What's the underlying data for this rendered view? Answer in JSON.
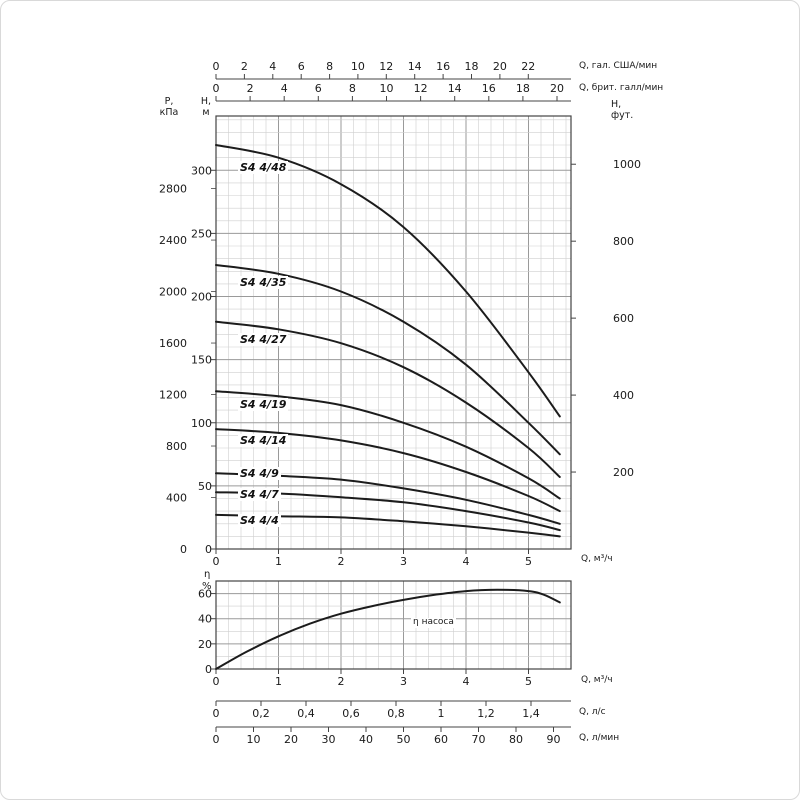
{
  "colors": {
    "curve": "#1c1c1c",
    "grid_minor": "#cfcfcf",
    "grid_major": "#9a9a9a",
    "frame": "#444444",
    "text": "#1a1a1a"
  },
  "labels": {
    "us_flow": "Q, гал. США/мин",
    "imp_flow": "Q, брит. галл/мин",
    "pressure_line1": "P,",
    "pressure_line2": "кПа",
    "head_m_line1": "H,",
    "head_m_line2": "м",
    "head_ft_line1": "H,",
    "head_ft_line2": "фут.",
    "q_m3h_main": "Q, м³/ч",
    "eta_line1": "η",
    "eta_line2": "%",
    "q_m3h_eff": "Q, м³/ч",
    "q_ls": "Q, л/с",
    "q_lmin": "Q, л/мин"
  },
  "chart_data": [
    {
      "type": "line",
      "xlabel": "Q, м³/ч",
      "ylabel": "H, м",
      "x_range": [
        0,
        5.68
      ],
      "y_range": [
        0,
        343
      ],
      "x_ticks": {
        "values": [
          0,
          1,
          2,
          3,
          4,
          5
        ],
        "labels": [
          "0",
          "1",
          "2",
          "3",
          "4",
          "5"
        ]
      },
      "y_ticks_head_m": {
        "values": [
          0,
          50,
          100,
          150,
          200,
          250,
          300
        ],
        "labels": [
          "0",
          "50",
          "100",
          "150",
          "200",
          "250",
          "300"
        ]
      },
      "y_ticks_kpa": {
        "values": [
          0,
          400,
          800,
          1200,
          1600,
          2000,
          2400,
          2800
        ],
        "labels": [
          "0",
          "400",
          "800",
          "1200",
          "1600",
          "2000",
          "2400",
          "2800"
        ],
        "kpa_per_m": 9.807
      },
      "y_ticks_ft": {
        "values": [
          200,
          400,
          600,
          800,
          1000
        ],
        "labels": [
          "200",
          "400",
          "600",
          "800",
          "1000"
        ],
        "m_per_ft": 0.3048
      },
      "top_axes": [
        {
          "name": "us_gpm",
          "values": [
            0,
            2,
            4,
            6,
            8,
            10,
            12,
            14,
            16,
            18,
            20,
            22
          ],
          "labels": [
            "0",
            "2",
            "4",
            "6",
            "8",
            "10",
            "12",
            "14",
            "16",
            "18",
            "20",
            "22"
          ],
          "m3h_per_unit": 0.2271
        },
        {
          "name": "imp_gpm",
          "values": [
            0,
            2,
            4,
            6,
            8,
            10,
            12,
            14,
            16,
            18,
            20
          ],
          "labels": [
            "0",
            "2",
            "4",
            "6",
            "8",
            "10",
            "12",
            "14",
            "16",
            "18",
            "20"
          ],
          "m3h_per_unit": 0.2728
        }
      ],
      "grid": {
        "x_minor": 0.2,
        "x_major": 1,
        "y_minor": 10,
        "y_major": 50
      },
      "x": [
        0,
        1,
        2,
        3,
        4,
        5,
        5.5
      ],
      "series": [
        {
          "name": "S4 4/48",
          "values": [
            320,
            310,
            289,
            255,
            204,
            140,
            105
          ],
          "label_h": 301
        },
        {
          "name": "S4 4/35",
          "values": [
            225,
            218,
            204,
            180,
            146,
            100,
            75
          ],
          "label_h": 210
        },
        {
          "name": "S4 4/27",
          "values": [
            180,
            174,
            163,
            144,
            116,
            80,
            57
          ],
          "label_h": 165
        },
        {
          "name": "S4 4/19",
          "values": [
            125,
            121,
            114,
            100,
            81,
            56,
            40
          ],
          "label_h": 113
        },
        {
          "name": "S4 4/14",
          "values": [
            95,
            92,
            86,
            76,
            61,
            42,
            30
          ],
          "label_h": 85
        },
        {
          "name": "S4 4/9",
          "values": [
            60,
            58,
            55,
            48,
            39,
            27,
            20
          ],
          "label_h": 59
        },
        {
          "name": "S4 4/7",
          "values": [
            45,
            44,
            41,
            37,
            30,
            21,
            15
          ],
          "label_h": 42
        },
        {
          "name": "S4 4/4",
          "values": [
            27,
            26,
            25,
            22,
            18,
            13,
            10
          ],
          "label_h": 21
        }
      ]
    },
    {
      "type": "line",
      "xlabel": "Q, м³/ч",
      "ylabel": "η %",
      "x_range": [
        0,
        5.68
      ],
      "y_range": [
        0,
        70
      ],
      "x_ticks": {
        "values": [
          0,
          1,
          2,
          3,
          4,
          5
        ],
        "labels": [
          "0",
          "1",
          "2",
          "3",
          "4",
          "5"
        ]
      },
      "y_ticks": {
        "values": [
          0,
          20,
          40,
          60
        ],
        "labels": [
          "0",
          "20",
          "40",
          "60"
        ]
      },
      "grid": {
        "x_minor": 0.2,
        "x_major": 1,
        "y_minor": 10,
        "y_major": 20
      },
      "annotation": "η насоса",
      "x": [
        0,
        0.5,
        1,
        1.5,
        2,
        2.5,
        3,
        3.5,
        4,
        4.5,
        5,
        5.25,
        5.5
      ],
      "values": [
        0,
        14,
        26,
        36,
        44,
        50,
        55,
        59,
        62,
        63,
        62,
        59,
        53
      ]
    }
  ],
  "bottom_axes": [
    {
      "name": "l_per_s",
      "label": "Q, л/с",
      "values": [
        0,
        0.2,
        0.4,
        0.6,
        0.8,
        1,
        1.2,
        1.4
      ],
      "labels": [
        "0",
        "0,2",
        "0,4",
        "0,6",
        "0,8",
        "1",
        "1,2",
        "1,4"
      ],
      "m3h_per_unit": 3.6
    },
    {
      "name": "l_per_min",
      "label": "Q, л/мин",
      "values": [
        0,
        10,
        20,
        30,
        40,
        50,
        60,
        70,
        80,
        90
      ],
      "labels": [
        "0",
        "10",
        "20",
        "30",
        "40",
        "50",
        "60",
        "70",
        "80",
        "90"
      ],
      "m3h_per_unit": 0.06
    }
  ]
}
